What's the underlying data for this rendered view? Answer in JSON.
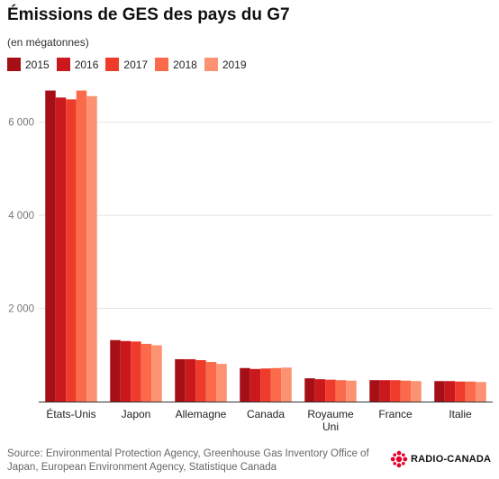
{
  "chart_data": {
    "type": "bar",
    "title": "Émissions de GES des pays du G7",
    "subtitle": "(en mégatonnes)",
    "categories": [
      "États-Unis",
      "Japon",
      "Allemagne",
      "Canada",
      "Royaume Uni",
      "France",
      "Italie"
    ],
    "series": [
      {
        "name": "2015",
        "color": "#a50f15",
        "values": [
          6680,
          1320,
          910,
          720,
          500,
          460,
          440
        ]
      },
      {
        "name": "2016",
        "color": "#cb181d",
        "values": [
          6530,
          1300,
          910,
          700,
          480,
          460,
          440
        ]
      },
      {
        "name": "2017",
        "color": "#ef3b2c",
        "values": [
          6490,
          1290,
          890,
          710,
          470,
          460,
          430
        ]
      },
      {
        "name": "2018",
        "color": "#fb6a4a",
        "values": [
          6680,
          1240,
          850,
          720,
          460,
          450,
          430
        ]
      },
      {
        "name": "2019",
        "color": "#fc9272",
        "values": [
          6560,
          1210,
          810,
          730,
          450,
          440,
          420
        ]
      }
    ],
    "yticks": [
      0,
      2000,
      4000,
      6000
    ],
    "ytick_labels": [
      "",
      "2 000",
      "4 000",
      "6 000"
    ],
    "ylim": [
      0,
      7000
    ],
    "grid": true,
    "legend": "top-left"
  },
  "footer": {
    "source": "Source: Environmental Protection Agency, Greenhouse Gas Inventory Office of Japan, European Environment Agency, Statistique Canada",
    "brand": "RADIO-CANADA",
    "brand_icon": "radio-canada-gem-icon",
    "brand_color": "#e4002b"
  }
}
